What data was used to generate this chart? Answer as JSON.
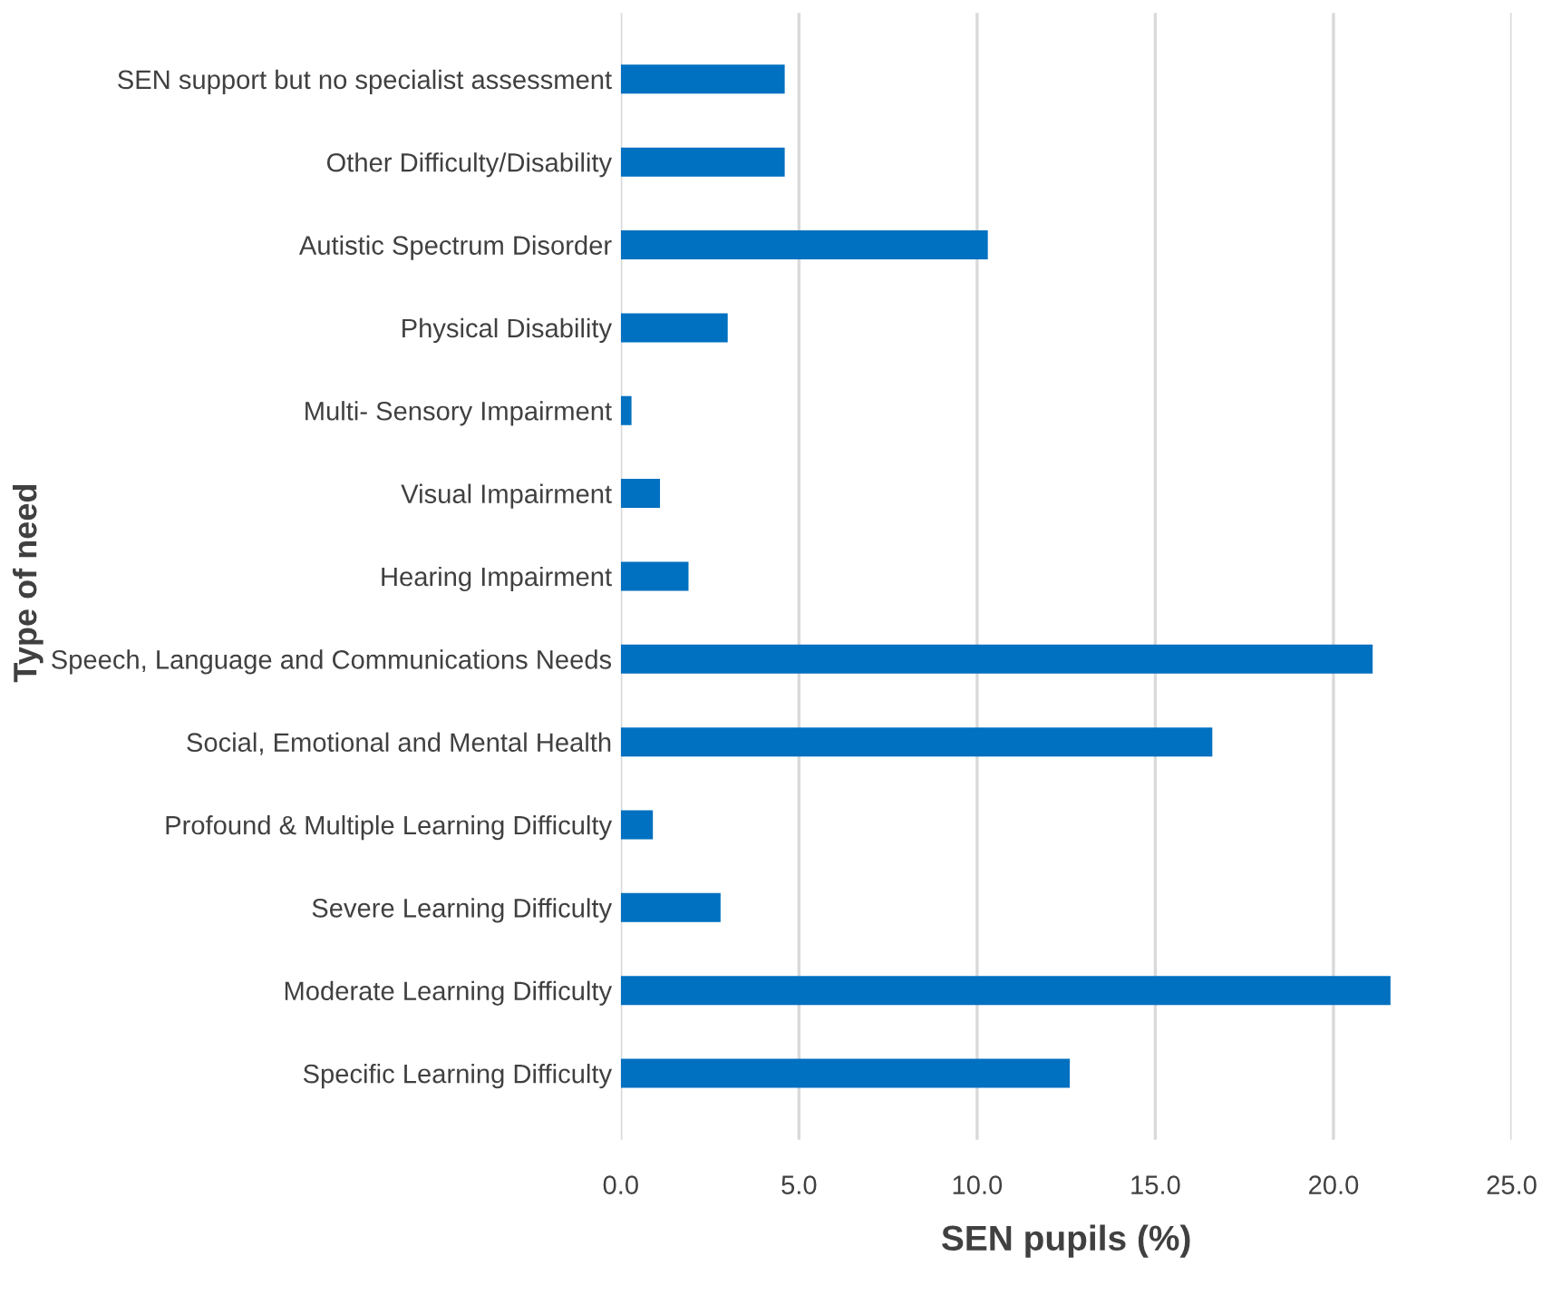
{
  "chart_data": {
    "type": "bar",
    "orientation": "horizontal",
    "xlabel": "SEN pupils (%)",
    "ylabel": "Type of need",
    "categories": [
      "SEN support but no specialist assessment",
      "Other Difficulty/Disability",
      "Autistic Spectrum Disorder",
      "Physical Disability",
      "Multi- Sensory Impairment",
      "Visual Impairment",
      "Hearing Impairment",
      "Speech, Language and Communications Needs",
      "Social, Emotional and Mental Health",
      "Profound & Multiple Learning Difficulty",
      "Severe Learning Difficulty",
      "Moderate Learning Difficulty",
      "Specific Learning Difficulty"
    ],
    "values": [
      4.6,
      4.6,
      10.3,
      3.0,
      0.3,
      1.1,
      1.9,
      21.1,
      16.6,
      0.9,
      2.8,
      21.6,
      12.6
    ],
    "color": "#0070c0",
    "xlim": [
      0,
      25
    ],
    "xticks": [
      {
        "value": 0,
        "label": "0.0"
      },
      {
        "value": 5,
        "label": "5.0"
      },
      {
        "value": 10,
        "label": "10.0"
      },
      {
        "value": 15,
        "label": "15.0"
      },
      {
        "value": 20,
        "label": "20.0"
      },
      {
        "value": 25,
        "label": "25.0"
      }
    ],
    "grid": "x",
    "legend": false
  }
}
